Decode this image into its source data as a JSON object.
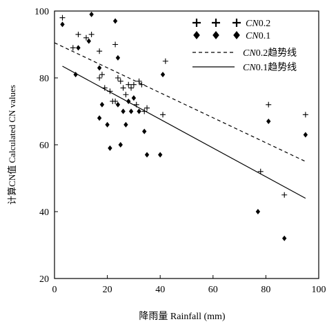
{
  "chart_data": {
    "type": "scatter",
    "xlabel": "降雨量 Rainfall (mm)",
    "ylabel": "计算CN值 Calculated CN values",
    "xlim": [
      0,
      100
    ],
    "ylim": [
      20,
      100
    ],
    "x_ticks": [
      "0",
      "20",
      "40",
      "60",
      "80",
      "100"
    ],
    "y_ticks": [
      "20",
      "40",
      "60",
      "80",
      "100"
    ],
    "legend_position": "top-right",
    "grid": false,
    "series": [
      {
        "name": "CN0.2",
        "marker": "plus",
        "points": [
          [
            3,
            98
          ],
          [
            7,
            89
          ],
          [
            9,
            93
          ],
          [
            12,
            92
          ],
          [
            14,
            93
          ],
          [
            17,
            88
          ],
          [
            17,
            80
          ],
          [
            18,
            81
          ],
          [
            19,
            77
          ],
          [
            21,
            76
          ],
          [
            22,
            73
          ],
          [
            23,
            90
          ],
          [
            23,
            73
          ],
          [
            24,
            80
          ],
          [
            25,
            79
          ],
          [
            26,
            77
          ],
          [
            27,
            75
          ],
          [
            28,
            78
          ],
          [
            29,
            77
          ],
          [
            30,
            78
          ],
          [
            31,
            72
          ],
          [
            32,
            79
          ],
          [
            33,
            78
          ],
          [
            34,
            70
          ],
          [
            35,
            71
          ],
          [
            41,
            69
          ],
          [
            42,
            85
          ],
          [
            78,
            52
          ],
          [
            81,
            72
          ],
          [
            87,
            45
          ],
          [
            95,
            69
          ]
        ]
      },
      {
        "name": "CN0.1",
        "marker": "diamond",
        "points": [
          [
            3,
            96
          ],
          [
            8,
            81
          ],
          [
            9,
            89
          ],
          [
            13,
            91
          ],
          [
            14,
            99
          ],
          [
            17,
            83
          ],
          [
            17,
            68
          ],
          [
            18,
            72
          ],
          [
            20,
            66
          ],
          [
            21,
            59
          ],
          [
            23,
            97
          ],
          [
            24,
            86
          ],
          [
            24,
            72
          ],
          [
            25,
            60
          ],
          [
            26,
            70
          ],
          [
            27,
            66
          ],
          [
            28,
            73
          ],
          [
            29,
            70
          ],
          [
            30,
            74
          ],
          [
            32,
            70
          ],
          [
            34,
            64
          ],
          [
            35,
            57
          ],
          [
            40,
            57
          ],
          [
            41,
            81
          ],
          [
            77,
            40
          ],
          [
            81,
            67
          ],
          [
            87,
            32
          ],
          [
            95,
            63
          ]
        ]
      }
    ],
    "trendlines": [
      {
        "name": "CN0.2趋势线",
        "style": "dashed",
        "x": [
          0,
          95
        ],
        "y": [
          90.5,
          55
        ]
      },
      {
        "name": "CN0.1趋势线",
        "style": "solid",
        "x": [
          3,
          95
        ],
        "y": [
          83.5,
          44
        ]
      }
    ]
  }
}
